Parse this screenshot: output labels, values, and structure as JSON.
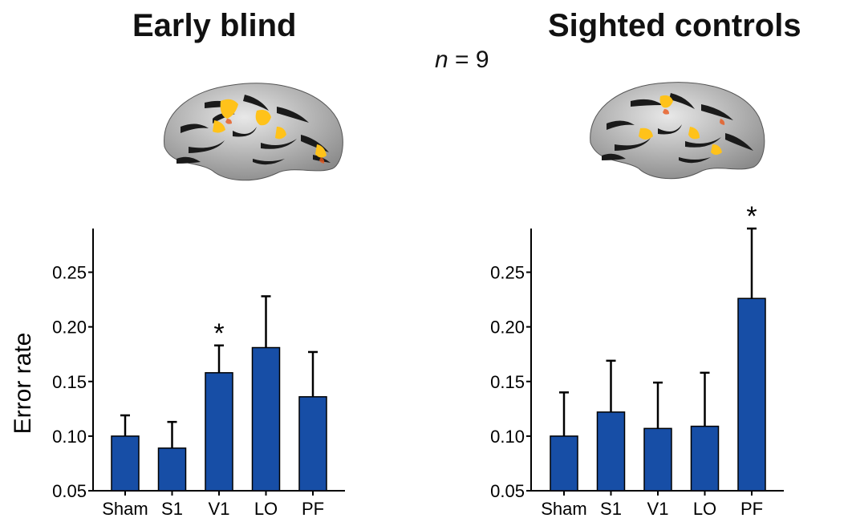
{
  "header": {
    "left_title": "Early blind",
    "right_title": "Sighted controls",
    "n_italic": "n",
    "n_rest": " = 9"
  },
  "chart_data": [
    {
      "type": "bar",
      "title": "Early blind",
      "categories": [
        "Sham",
        "S1",
        "V1",
        "LO",
        "PF"
      ],
      "values": [
        0.1,
        0.089,
        0.158,
        0.181,
        0.136
      ],
      "errors": [
        0.019,
        0.024,
        0.025,
        0.047,
        0.041
      ],
      "significant": [
        false,
        false,
        true,
        false,
        false
      ],
      "ylabel": "Error rate",
      "ylim": [
        0.05,
        0.29
      ],
      "yticks": [
        "0.05",
        "0.10",
        "0.15",
        "0.20",
        "0.25"
      ],
      "bar_color": "#174ea6",
      "marker": "*"
    },
    {
      "type": "bar",
      "title": "Sighted controls",
      "categories": [
        "Sham",
        "S1",
        "V1",
        "LO",
        "PF"
      ],
      "values": [
        0.1,
        0.122,
        0.107,
        0.109,
        0.226
      ],
      "errors": [
        0.04,
        0.047,
        0.042,
        0.049,
        0.064
      ],
      "significant": [
        false,
        false,
        false,
        false,
        true
      ],
      "ylabel": "",
      "ylim": [
        0.05,
        0.29
      ],
      "yticks": [
        "0.05",
        "0.10",
        "0.15",
        "0.20",
        "0.25"
      ],
      "bar_color": "#174ea6",
      "marker": "*"
    }
  ]
}
